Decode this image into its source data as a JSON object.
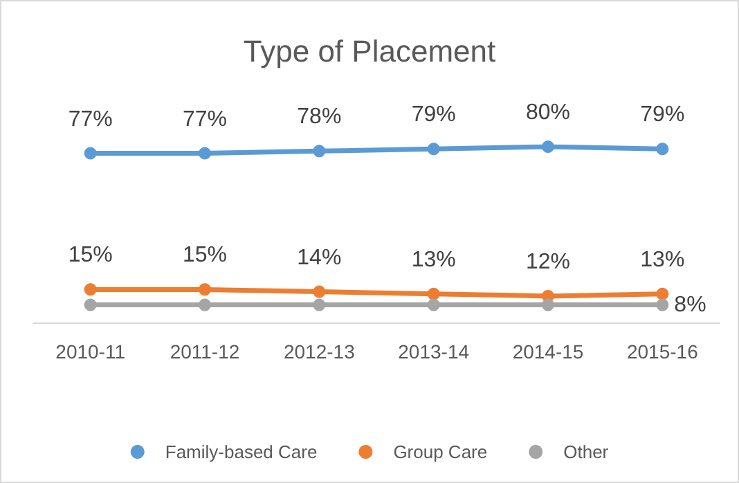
{
  "chart_data": {
    "type": "line",
    "title": "Type of Placement",
    "categories": [
      "2010-11",
      "2011-12",
      "2012-13",
      "2013-14",
      "2014-15",
      "2015-16"
    ],
    "series": [
      {
        "name": "Family-based Care",
        "color": "#5b9bd5",
        "values": [
          77,
          77,
          78,
          79,
          80,
          79
        ],
        "value_labels": [
          "77%",
          "77%",
          "78%",
          "79%",
          "80%",
          "79%"
        ]
      },
      {
        "name": "Group Care",
        "color": "#ed7d31",
        "values": [
          15,
          15,
          14,
          13,
          12,
          13
        ],
        "value_labels": [
          "15%",
          "15%",
          "14%",
          "13%",
          "12%",
          "13%"
        ]
      },
      {
        "name": "Other",
        "color": "#a5a5a5",
        "values": [
          8,
          8,
          8,
          8,
          8,
          8
        ],
        "value_labels": [
          null,
          null,
          null,
          null,
          null,
          "8%"
        ]
      }
    ],
    "grid": false,
    "legend": "bottom",
    "marker": "circle",
    "line_style": "solid"
  }
}
